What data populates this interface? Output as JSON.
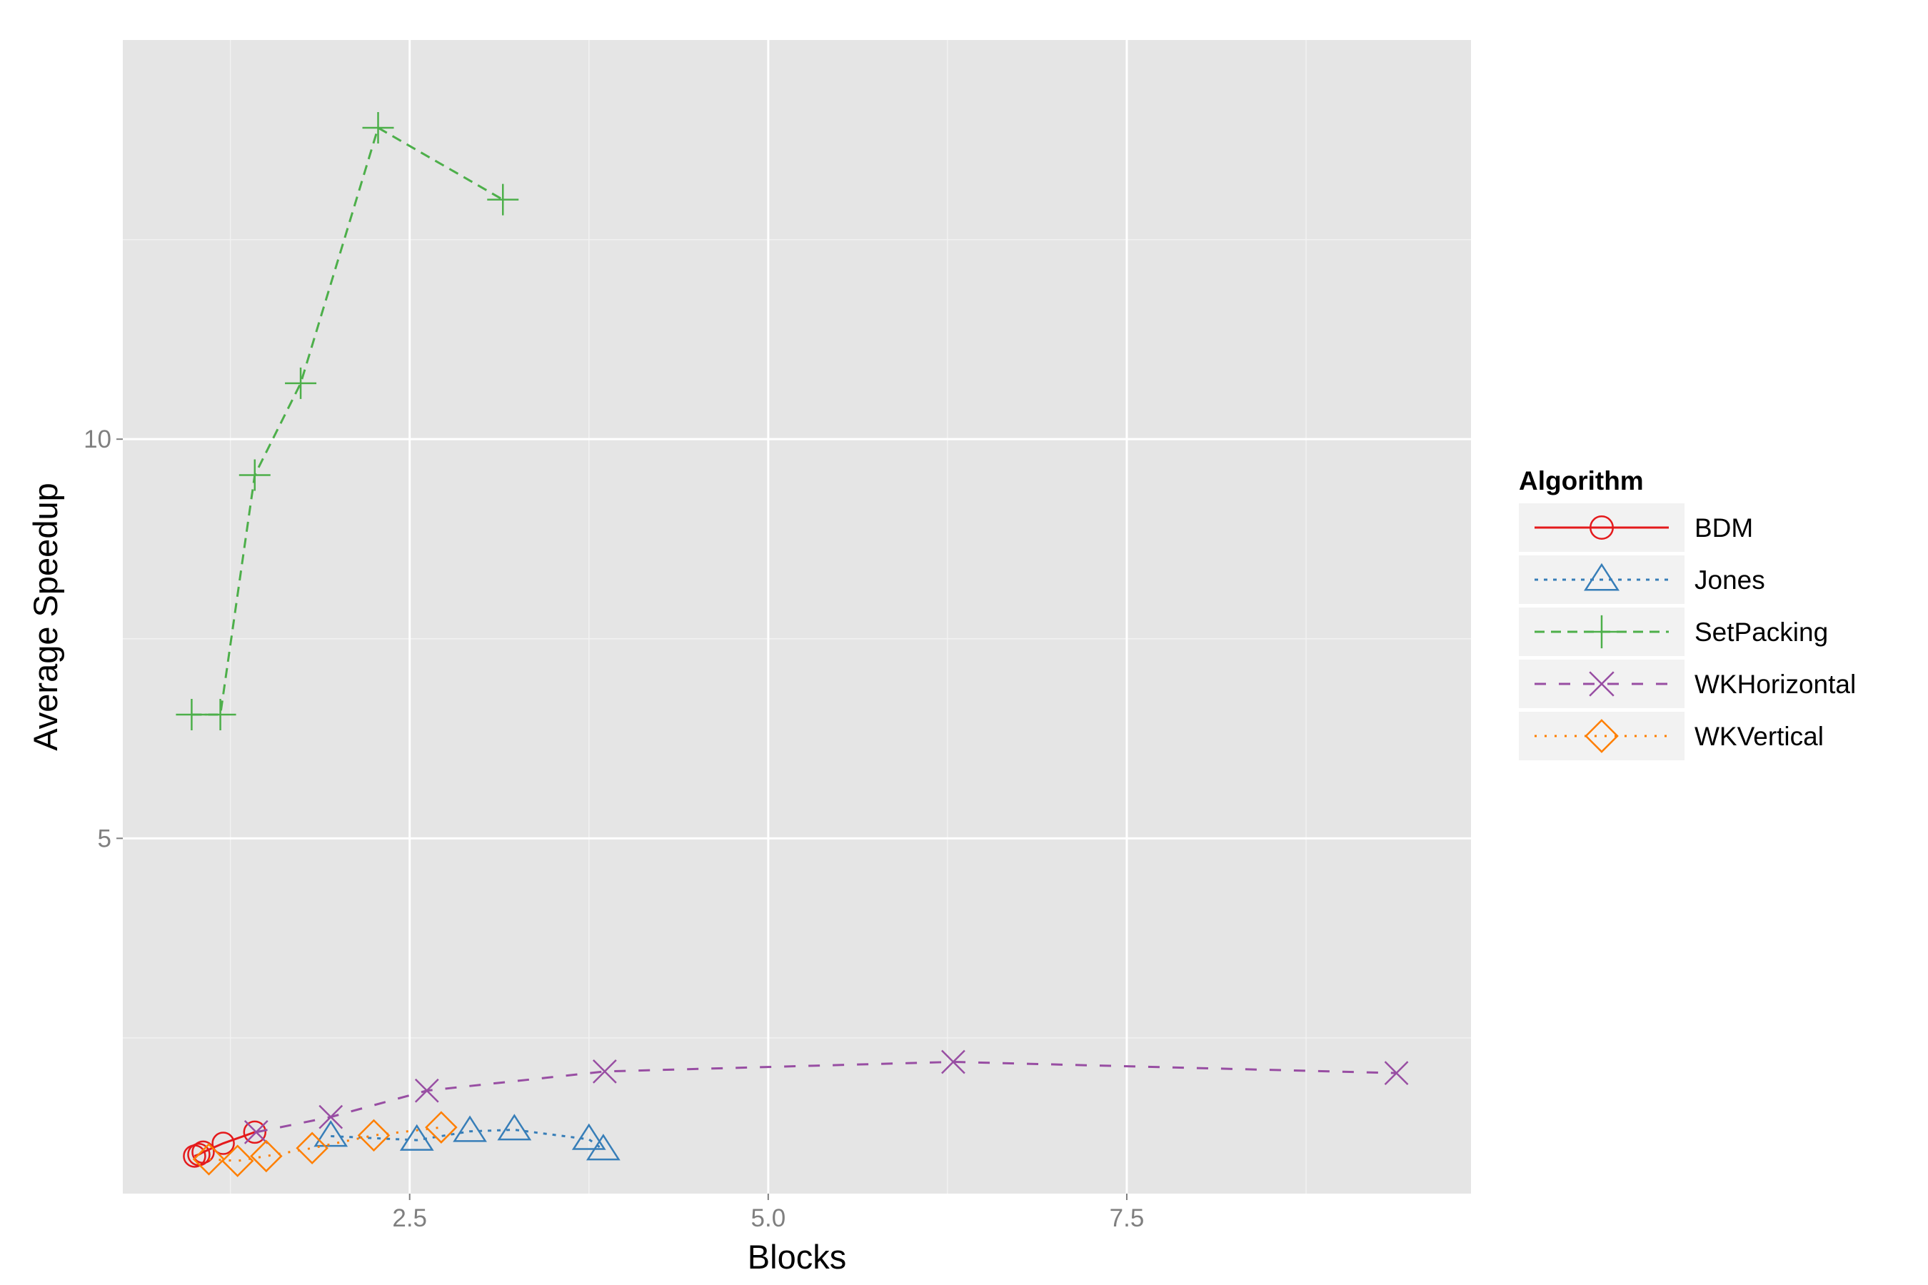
{
  "chart_data": {
    "type": "line",
    "title": "",
    "xlabel": "Blocks",
    "ylabel": "Average Speedup",
    "xlim": [
      0.5,
      9.9
    ],
    "ylim": [
      0.55,
      15.0
    ],
    "x_ticks": [
      2.5,
      5.0,
      7.5
    ],
    "x_tick_labels": [
      "2.5",
      "5.0",
      "7.5"
    ],
    "y_ticks": [
      5,
      10
    ],
    "y_tick_labels": [
      "5",
      "10"
    ],
    "grid": true,
    "legend": {
      "title": "Algorithm",
      "position": "right"
    },
    "series": [
      {
        "name": "BDM",
        "color": "#e41a1c",
        "dash": "solid",
        "marker": "circle",
        "x": [
          1.0,
          1.03,
          1.06,
          1.2,
          1.42
        ],
        "y": [
          1.02,
          1.04,
          1.07,
          1.18,
          1.32
        ]
      },
      {
        "name": "Jones",
        "color": "#377eb8",
        "dash": "dotted",
        "marker": "triangle",
        "x": [
          1.95,
          2.55,
          2.92,
          3.23,
          3.75,
          3.85
        ],
        "y": [
          1.27,
          1.22,
          1.33,
          1.35,
          1.23,
          1.1
        ]
      },
      {
        "name": "SetPacking",
        "color": "#4daf4a",
        "dash": "dashed",
        "marker": "plus",
        "x": [
          0.98,
          1.18,
          1.42,
          1.74,
          2.28,
          3.15
        ],
        "y": [
          6.55,
          6.55,
          9.55,
          10.7,
          13.9,
          13.0
        ]
      },
      {
        "name": "WKHorizontal",
        "color": "#984ea3",
        "dash": "longdash",
        "marker": "cross",
        "x": [
          1.43,
          1.95,
          2.62,
          3.86,
          6.29,
          9.38
        ],
        "y": [
          1.32,
          1.51,
          1.84,
          2.08,
          2.2,
          2.06
        ]
      },
      {
        "name": "WKVertical",
        "color": "#ff7f00",
        "dash": "dotted-fine",
        "marker": "diamond",
        "x": [
          1.1,
          1.3,
          1.5,
          1.82,
          2.25,
          2.72
        ],
        "y": [
          0.98,
          0.96,
          1.02,
          1.12,
          1.28,
          1.38
        ]
      }
    ]
  }
}
